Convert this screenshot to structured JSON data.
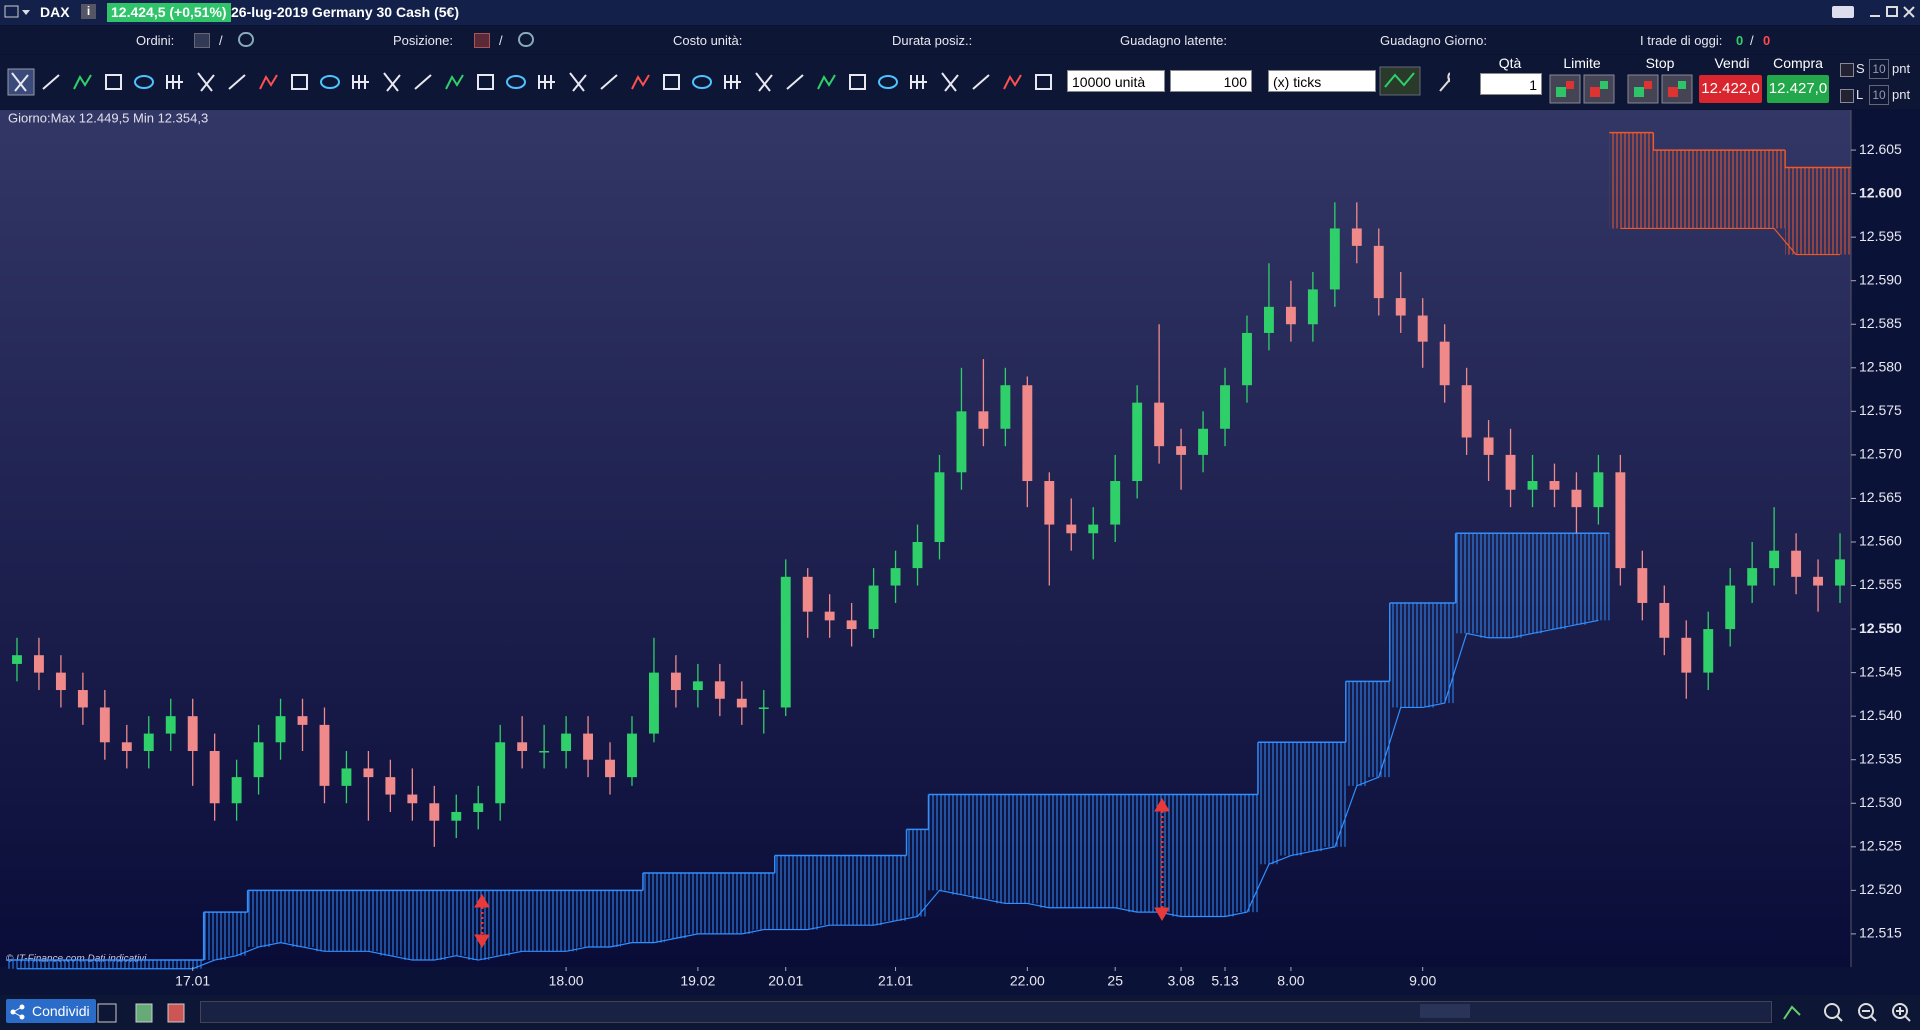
{
  "header": {
    "symbol": "DAX",
    "quote": "12.424,5 (+0,51%)",
    "instrument": "26-lug-2019 Germany 30 Cash (5€)"
  },
  "info_bar": {
    "orders": "Ordini:",
    "position": "Posizione:",
    "unit_cost": "Costo unità:",
    "duration": "Durata posiz.:",
    "unrealized": "Guadagno latente:",
    "day_gain": "Guadagno Giorno:",
    "trades_today": "I trade di oggi:",
    "trades_won": "0",
    "trades_lost": "0",
    "sep": "/"
  },
  "toolbar": {
    "size": "10000 unità",
    "amount": "100",
    "amount_unit": "(x) ticks"
  },
  "order_panel": {
    "qty_label": "Qtà",
    "qty": "1",
    "limit": "Limite",
    "stop": "Stop",
    "sell": "Vendi",
    "buy": "Compra",
    "sell_price": "12.422,0",
    "buy_price": "12.427,0",
    "s": "S",
    "l": "L",
    "s_pts": "10",
    "l_pts": "10",
    "unit": "pnt"
  },
  "footer": {
    "share": "Condividi"
  },
  "chart_data": {
    "type": "candlestick",
    "info": "Giorno:Max 12.449,5 Min 12.354,3",
    "source": "© IT-Finance.com Dati indicativi",
    "up_color": "#2fd06a",
    "down_color": "#f08a8a",
    "categories": [
      null,
      null,
      null,
      null,
      null,
      null,
      null,
      null,
      "17.01",
      null,
      null,
      null,
      null,
      null,
      null,
      null,
      null,
      null,
      null,
      null,
      null,
      null,
      null,
      null,
      null,
      "18.00",
      null,
      null,
      null,
      null,
      null,
      "19.02",
      null,
      null,
      null,
      "20.01",
      null,
      null,
      null,
      null,
      "21.01",
      null,
      null,
      null,
      null,
      null,
      "22.00",
      null,
      null,
      null,
      "25",
      null,
      null,
      "3.08",
      null,
      "5.13",
      null,
      null,
      "8.00",
      null,
      null,
      null,
      null,
      null,
      "9.00",
      null,
      null,
      null,
      null,
      null,
      null,
      null,
      null,
      null,
      null,
      null,
      null,
      null,
      null,
      null,
      null,
      null,
      null,
      null
    ],
    "open": [
      12546,
      12547,
      12545,
      12543,
      12541,
      12537,
      12536,
      12538,
      12540,
      12536,
      12530,
      12533,
      12537,
      12540,
      12539,
      12532,
      12534,
      12533,
      12531,
      12530,
      12528,
      12529,
      12530,
      12537,
      12536,
      12536,
      12538,
      12535,
      12533,
      12538,
      12545,
      12543,
      12544,
      12542,
      12541,
      12541,
      12556,
      12552,
      12551,
      12550,
      12555,
      12557,
      12560,
      12568,
      12575,
      12573,
      12578,
      12567,
      12562,
      12561,
      12562,
      12567,
      12576,
      12571,
      12570,
      12573,
      12578,
      12584,
      12587,
      12585,
      12589,
      12596,
      12594,
      12588,
      12586,
      12583,
      12578,
      12572,
      12570,
      12566,
      12567,
      12566,
      12564,
      12568,
      12557,
      12553,
      12549,
      12545,
      12550,
      12555,
      12557,
      12559,
      12556,
      12555
    ],
    "high": [
      12549,
      12549,
      12547,
      12545,
      12543,
      12539,
      12540,
      12542,
      12542,
      12538,
      12535,
      12539,
      12542,
      12542,
      12541,
      12536,
      12536,
      12535,
      12534,
      12532,
      12531,
      12532,
      12539,
      12540,
      12539,
      12540,
      12540,
      12537,
      12540,
      12549,
      12547,
      12546,
      12546,
      12544,
      12543,
      12558,
      12557,
      12554,
      12553,
      12557,
      12559,
      12562,
      12570,
      12580,
      12581,
      12580,
      12579,
      12568,
      12565,
      12564,
      12570,
      12578,
      12585,
      12573,
      12575,
      12580,
      12586,
      12592,
      12590,
      12591,
      12599,
      12599,
      12596,
      12591,
      12588,
      12585,
      12580,
      12574,
      12573,
      12570,
      12569,
      12568,
      12570,
      12570,
      12559,
      12555,
      12551,
      12552,
      12557,
      12560,
      12564,
      12561,
      12558,
      12561
    ],
    "low": [
      12544,
      12543,
      12541,
      12539,
      12535,
      12534,
      12534,
      12536,
      12532,
      12528,
      12528,
      12531,
      12535,
      12536,
      12530,
      12530,
      12528,
      12529,
      12528,
      12525,
      12526,
      12527,
      12528,
      12534,
      12534,
      12534,
      12533,
      12531,
      12532,
      12537,
      12541,
      12541,
      12540,
      12539,
      12538,
      12540,
      12549,
      12549,
      12548,
      12549,
      12553,
      12555,
      12558,
      12566,
      12571,
      12571,
      12564,
      12555,
      12559,
      12558,
      12560,
      12565,
      12569,
      12566,
      12568,
      12571,
      12576,
      12582,
      12583,
      12583,
      12587,
      12592,
      12586,
      12584,
      12580,
      12576,
      12570,
      12567,
      12564,
      12564,
      12564,
      12561,
      12562,
      12555,
      12551,
      12547,
      12542,
      12543,
      12548,
      12553,
      12555,
      12554,
      12552,
      12553
    ],
    "close": [
      12547,
      12545,
      12543,
      12541,
      12537,
      12536,
      12538,
      12540,
      12536,
      12530,
      12533,
      12537,
      12540,
      12539,
      12532,
      12534,
      12533,
      12531,
      12530,
      12528,
      12529,
      12530,
      12537,
      12536,
      12536,
      12538,
      12535,
      12533,
      12538,
      12545,
      12543,
      12544,
      12542,
      12541,
      12541,
      12556,
      12552,
      12551,
      12550,
      12555,
      12557,
      12560,
      12568,
      12575,
      12573,
      12578,
      12567,
      12562,
      12561,
      12562,
      12567,
      12576,
      12571,
      12570,
      12573,
      12578,
      12584,
      12587,
      12585,
      12589,
      12596,
      12594,
      12588,
      12586,
      12583,
      12578,
      12572,
      12570,
      12566,
      12567,
      12566,
      12564,
      12568,
      12557,
      12553,
      12549,
      12545,
      12550,
      12555,
      12557,
      12559,
      12556,
      12555,
      12558
    ],
    "bands": [
      {
        "color": "#2f8fff",
        "upper": [
          12512,
          12512,
          12512,
          12512,
          12512,
          12512,
          12512,
          12512,
          12512,
          12517.5,
          12517.5,
          12520,
          12520,
          12520,
          12520,
          12520,
          12520,
          12520,
          12520,
          12520,
          12520,
          12520,
          12520,
          12520,
          12520,
          12520,
          12520,
          12520,
          12520,
          12522,
          12522,
          12522,
          12522,
          12522,
          12522,
          12524,
          12524,
          12524,
          12524,
          12524,
          12524,
          12527,
          12531,
          12531,
          12531,
          12531,
          12531,
          12531,
          12531,
          12531,
          12531,
          12531,
          12531,
          12531,
          12531,
          12531,
          12531,
          12537,
          12537,
          12537,
          12537,
          12544,
          12544,
          12553,
          12553,
          12553,
          12561,
          12561,
          12561,
          12561,
          12561,
          12561,
          12561,
          null,
          null,
          null,
          null,
          null,
          null,
          null,
          null,
          null,
          null,
          null
        ],
        "lower": [
          12511,
          12511,
          12511,
          12511,
          12511,
          12511,
          12511,
          12511,
          12511,
          12512,
          12512.5,
          12513.5,
          12514,
          12513.5,
          12513,
          12513,
          12513,
          12512.5,
          12512,
          12512,
          12512.5,
          12512,
          12512.5,
          12513,
          12513,
          12513,
          12513.5,
          12513.5,
          12514,
          12514,
          12514.5,
          12515,
          12515,
          12515,
          12515.5,
          12515.5,
          12515.5,
          12516,
          12516,
          12516,
          12516.5,
          12517,
          12520,
          12519.5,
          12519,
          12518.5,
          12518.5,
          12518,
          12518,
          12518,
          12518,
          12517.5,
          12517.5,
          12517,
          12517,
          12517,
          12517.5,
          12523,
          12524,
          12524.5,
          12525,
          12532,
          12533,
          12541,
          12541,
          12541.5,
          12549.5,
          12549,
          12549,
          12549.5,
          12550,
          12550.5,
          12551,
          null,
          null,
          null,
          null,
          null,
          null,
          null,
          null,
          null,
          null,
          null
        ]
      },
      {
        "color": "#f0582a",
        "upper": [
          null,
          null,
          null,
          null,
          null,
          null,
          null,
          null,
          null,
          null,
          null,
          null,
          null,
          null,
          null,
          null,
          null,
          null,
          null,
          null,
          null,
          null,
          null,
          null,
          null,
          null,
          null,
          null,
          null,
          null,
          null,
          null,
          null,
          null,
          null,
          null,
          null,
          null,
          null,
          null,
          null,
          null,
          null,
          null,
          null,
          null,
          null,
          null,
          null,
          null,
          null,
          null,
          null,
          null,
          null,
          null,
          null,
          null,
          null,
          null,
          null,
          null,
          null,
          null,
          null,
          null,
          null,
          null,
          null,
          null,
          null,
          null,
          null,
          12607,
          12607,
          12605,
          12605,
          12605,
          12605,
          12605,
          12605,
          12603,
          12603,
          12603
        ],
        "lower": [
          null,
          null,
          null,
          null,
          null,
          null,
          null,
          null,
          null,
          null,
          null,
          null,
          null,
          null,
          null,
          null,
          null,
          null,
          null,
          null,
          null,
          null,
          null,
          null,
          null,
          null,
          null,
          null,
          null,
          null,
          null,
          null,
          null,
          null,
          null,
          null,
          null,
          null,
          null,
          null,
          null,
          null,
          null,
          null,
          null,
          null,
          null,
          null,
          null,
          null,
          null,
          null,
          null,
          null,
          null,
          null,
          null,
          null,
          null,
          null,
          null,
          null,
          null,
          null,
          null,
          null,
          null,
          null,
          null,
          null,
          null,
          null,
          null,
          12596,
          12596,
          12596,
          12596,
          12596,
          12596,
          12596,
          12596,
          12593,
          12593,
          12593
        ]
      }
    ],
    "ylim": [
      12511.2,
      12609.6
    ],
    "yticks": [
      {
        "value": 12515,
        "label": "12.515"
      },
      {
        "value": 12520,
        "label": "12.520"
      },
      {
        "value": 12525,
        "label": "12.525"
      },
      {
        "value": 12530,
        "label": "12.530"
      },
      {
        "value": 12535,
        "label": "12.535"
      },
      {
        "value": 12540,
        "label": "12.540"
      },
      {
        "value": 12545,
        "label": "12.545"
      },
      {
        "value": 12550,
        "label": "12.550",
        "bold": true
      },
      {
        "value": 12555,
        "label": "12.555"
      },
      {
        "value": 12560,
        "label": "12.560"
      },
      {
        "value": 12565,
        "label": "12.565"
      },
      {
        "value": 12570,
        "label": "12.570"
      },
      {
        "value": 12575,
        "label": "12.575"
      },
      {
        "value": 12580,
        "label": "12.580"
      },
      {
        "value": 12585,
        "label": "12.585"
      },
      {
        "value": 12590,
        "label": "12.590"
      },
      {
        "value": 12595,
        "label": "12.595"
      },
      {
        "value": 12600,
        "label": "12.600",
        "bold": true
      },
      {
        "value": 12605,
        "label": "12.605"
      }
    ]
  }
}
